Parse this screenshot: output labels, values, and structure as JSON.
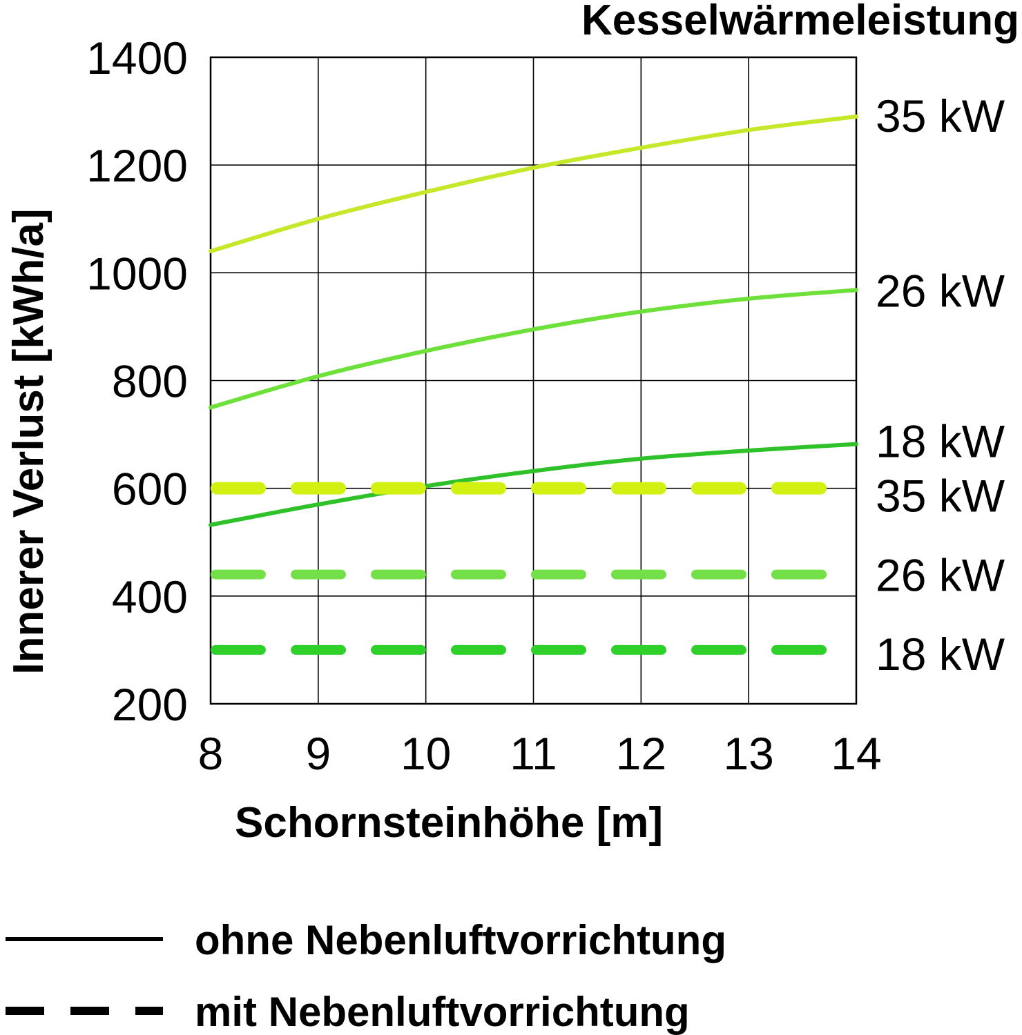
{
  "chart_data": {
    "type": "line",
    "title": "Kesselwärmeleistung",
    "xlabel": "Schornsteinhöhe [m]",
    "ylabel": "Innerer Verlust [kWh/a]",
    "xlim": [
      8,
      14
    ],
    "ylim": [
      200,
      1400
    ],
    "xticks": [
      8,
      9,
      10,
      11,
      12,
      13,
      14
    ],
    "yticks": [
      200,
      400,
      600,
      800,
      1000,
      1200,
      1400
    ],
    "grid": true,
    "x": [
      8,
      9,
      10,
      11,
      12,
      13,
      14
    ],
    "series": [
      {
        "name": "35 kW",
        "style": "solid",
        "color": "#c6e82a",
        "values": [
          1040,
          1100,
          1150,
          1195,
          1232,
          1265,
          1290
        ]
      },
      {
        "name": "26 kW",
        "style": "solid",
        "color": "#6ee03a",
        "values": [
          750,
          808,
          855,
          895,
          928,
          952,
          968
        ]
      },
      {
        "name": "18 kW",
        "style": "solid",
        "color": "#2fc12a",
        "values": [
          532,
          570,
          604,
          632,
          655,
          670,
          682
        ]
      },
      {
        "name": "35 kW",
        "style": "dashed",
        "color": "#d2f012",
        "values": [
          600,
          600,
          600,
          600,
          600,
          600,
          600
        ]
      },
      {
        "name": "26 kW",
        "style": "dashed",
        "color": "#74e048",
        "values": [
          440,
          440,
          440,
          440,
          440,
          440,
          440
        ]
      },
      {
        "name": "18 kW",
        "style": "dashed",
        "color": "#2fd02a",
        "values": [
          300,
          300,
          300,
          300,
          300,
          300,
          300
        ]
      }
    ],
    "legend": {
      "placement": "bottom",
      "items": [
        {
          "style": "solid",
          "label": "ohne Nebenluftvorrichtung"
        },
        {
          "style": "dashed",
          "label": "mit Nebenluftvorrichtung"
        }
      ]
    }
  }
}
